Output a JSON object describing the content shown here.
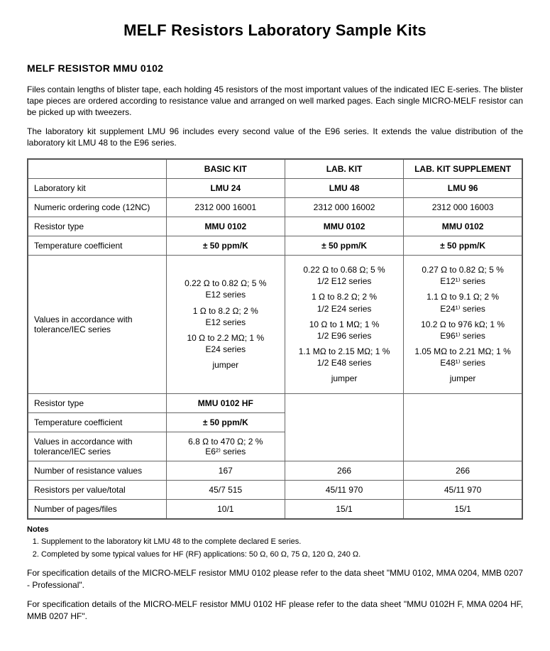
{
  "title": "MELF Resistors Laboratory Sample Kits",
  "section_heading": "MELF RESISTOR MMU 0102",
  "intro_para1": "Files contain lengths of blister tape, each holding 45 resistors of the most important values of the indicated IEC E-series. The blister tape pieces are ordered according to resistance value and arranged on well marked pages. Each single MICRO-MELF resistor can be picked up with tweezers.",
  "intro_para2": "The laboratory kit supplement LMU 96 includes every second value of the E96 series. It extends the value distribution of the laboratory kit LMU 48 to the E96 series.",
  "table": {
    "header_blank": "",
    "headers": [
      "BASIC KIT",
      "LAB. KIT",
      "LAB. KIT SUPPLEMENT"
    ],
    "rows": {
      "lab_kit": {
        "label": "Laboratory kit",
        "vals": [
          "LMU 24",
          "LMU 48",
          "LMU 96"
        ],
        "bold": true
      },
      "numeric_code": {
        "label": "Numeric ordering code (12NC)",
        "vals": [
          "2312 000 16001",
          "2312 000 16002",
          "2312 000 16003"
        ],
        "bold": false
      },
      "resistor_type": {
        "label": "Resistor type",
        "vals": [
          "MMU 0102",
          "MMU 0102",
          "MMU 0102"
        ],
        "bold": true
      },
      "temp_coef": {
        "label": "Temperature coefficient",
        "vals": [
          "± 50 ppm/K",
          "± 50 ppm/K",
          "± 50 ppm/K"
        ],
        "bold": true
      },
      "values_iec": {
        "label": "Values in accordance with tolerance/IEC series",
        "col1": [
          "0.22 Ω to 0.82 Ω; 5 %\nE12 series",
          "1 Ω to 8.2 Ω; 2 %\nE12 series",
          "10 Ω to 2.2 MΩ; 1 %\nE24 series",
          "jumper"
        ],
        "col2": [
          "0.22 Ω to 0.68 Ω; 5 %\n1/2 E12 series",
          "1 Ω to 8.2 Ω; 2 %\n1/2 E24 series",
          "10 Ω to 1 MΩ; 1 %\n1/2 E96 series",
          "1.1 MΩ to 2.15 MΩ; 1 %\n1/2 E48 series",
          "jumper"
        ],
        "col3": [
          "0.27 Ω to 0.82 Ω; 5 %\nE12¹⁾ series",
          "1.1 Ω to 9.1 Ω; 2 %\nE24¹⁾ series",
          "10.2 Ω to 976 kΩ; 1 %\nE96¹⁾ series",
          "1.05 MΩ to 2.21 MΩ; 1 %\nE48¹⁾ series",
          "jumper"
        ]
      },
      "resistor_type_hf": {
        "label": "Resistor type",
        "vals": [
          "MMU 0102 HF",
          "",
          ""
        ],
        "bold": true
      },
      "temp_coef_hf": {
        "label": "Temperature coefficient",
        "vals": [
          "± 50 ppm/K",
          "",
          ""
        ],
        "bold": true
      },
      "values_iec_hf": {
        "label": "Values in accordance with tolerance/IEC series",
        "vals": [
          "6.8 Ω to 470 Ω; 2 %\nE6²⁾ series",
          "",
          ""
        ],
        "bold": false
      },
      "num_resistance": {
        "label": "Number of resistance values",
        "vals": [
          "167",
          "266",
          "266"
        ],
        "bold": false
      },
      "resistors_per": {
        "label": "Resistors per value/total",
        "vals": [
          "45/7 515",
          "45/11 970",
          "45/11 970"
        ],
        "bold": false
      },
      "num_pages": {
        "label": "Number of pages/files",
        "vals": [
          "10/1",
          "15/1",
          "15/1"
        ],
        "bold": false
      }
    }
  },
  "notes_heading": "Notes",
  "notes": [
    "Supplement to the laboratory kit LMU 48 to the complete declared E series.",
    "Completed by some typical values for HF (RF) applications: 50 Ω, 60 Ω, 75 Ω, 120 Ω, 240 Ω."
  ],
  "footer1": "For specification details of the MICRO-MELF resistor MMU 0102 please refer to the data sheet \"MMU 0102, MMA 0204, MMB 0207 - Professional\".",
  "footer2": "For specification details of the MICRO-MELF resistor MMU 0102 HF please refer to the data sheet \"MMU 0102H F, MMA 0204 HF, MMB 0207 HF\"."
}
